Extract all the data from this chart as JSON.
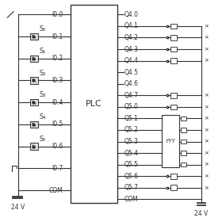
{
  "bg_color": "#ffffff",
  "line_color": "#333333",
  "plc_label": "PLC",
  "input_labels": [
    "I0.0",
    "I0.1",
    "I0.2",
    "I0.3",
    "I0.4",
    "I0.5",
    "I0.6",
    "I0.7",
    "COM"
  ],
  "output_labels": [
    "Q4.0",
    "Q4.1",
    "Q4.2",
    "Q4.3",
    "Q4.4",
    "Q4.5",
    "Q4.6",
    "Q4.7",
    "Q5.0",
    "Q5.1",
    "Q5.2",
    "Q5.3",
    "Q5.4",
    "Q5.5",
    "Q5.6",
    "Q5.7",
    "COM"
  ],
  "switch_labels": [
    "S₀",
    "S₁",
    "S₂",
    "S₃",
    "S₄",
    "S₅"
  ],
  "switch_input_rows": [
    1,
    2,
    3,
    4,
    5,
    6
  ],
  "fs": 5.5,
  "fs_label": 5.8
}
